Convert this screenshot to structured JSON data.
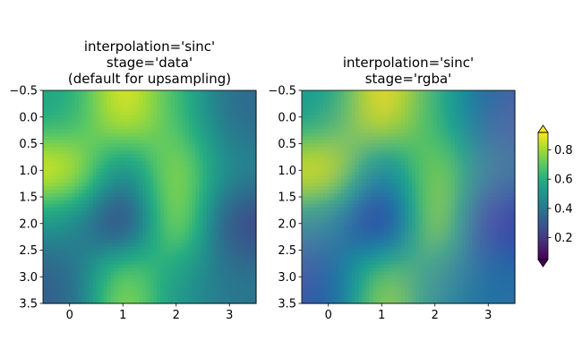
{
  "chart_data": {
    "type": "heatmap",
    "panels": [
      {
        "title_lines": [
          "interpolation='sinc'",
          "stage='data'",
          "(default for upsampling)"
        ],
        "interpolation": "sinc",
        "stage": "data",
        "colormap": "viridis",
        "xlim": [
          -0.5,
          3.5
        ],
        "ylim": [
          3.5,
          -0.5
        ],
        "y_inverted": true,
        "xticks": [
          0,
          1,
          2,
          3
        ],
        "xtick_labels": [
          "0",
          "1",
          "2",
          "3"
        ],
        "yticks": [
          -0.5,
          0.0,
          0.5,
          1.0,
          1.5,
          2.0,
          2.5,
          3.0,
          3.5
        ],
        "ytick_labels": [
          "−0.5",
          "0.0",
          "0.5",
          "1.0",
          "1.5",
          "2.0",
          "2.5",
          "3.0",
          "3.5"
        ]
      },
      {
        "title_lines": [
          "interpolation='sinc'",
          "stage='rgba'"
        ],
        "interpolation": "sinc",
        "stage": "rgba",
        "colormap": "viridis",
        "xlim": [
          -0.5,
          3.5
        ],
        "ylim": [
          3.5,
          -0.5
        ],
        "y_inverted": true,
        "xticks": [
          0,
          1,
          2,
          3
        ],
        "xtick_labels": [
          "0",
          "1",
          "2",
          "3"
        ],
        "yticks": [
          -0.5,
          0.0,
          0.5,
          1.0,
          1.5,
          2.0,
          2.5,
          3.0,
          3.5
        ],
        "ytick_labels": [
          "−0.5",
          "0.0",
          "0.5",
          "1.0",
          "1.5",
          "2.0",
          "2.5",
          "3.0",
          "3.5"
        ]
      }
    ],
    "data_grid_4x4": [
      [
        0.55,
        0.95,
        0.65,
        0.35
      ],
      [
        0.95,
        0.4,
        0.85,
        0.45
      ],
      [
        0.5,
        0.1,
        0.9,
        0.2
      ],
      [
        0.3,
        0.85,
        0.5,
        0.4
      ]
    ],
    "colorbar": {
      "colormap": "viridis",
      "range": [
        0.05,
        0.92
      ],
      "extend": "both",
      "ticks": [
        0.2,
        0.4,
        0.6,
        0.8
      ],
      "tick_labels": [
        "0.2",
        "0.4",
        "0.6",
        "0.8"
      ]
    },
    "grid": false,
    "legend": "none"
  }
}
